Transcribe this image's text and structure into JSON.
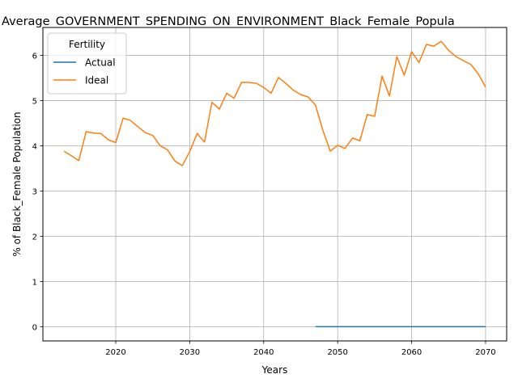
{
  "chart_data": {
    "type": "line",
    "title": "Average_GOVERNMENT_SPENDING_ON_ENVIRONMENT_Black_Female_Popula",
    "xlabel": "Years",
    "ylabel": "% of Black_Female Population",
    "xlim": [
      2010.15,
      2072.85
    ],
    "ylim": [
      -0.315,
      6.615
    ],
    "xticks": [
      2020,
      2030,
      2040,
      2050,
      2060,
      2070
    ],
    "yticks": [
      0,
      1,
      2,
      3,
      4,
      5,
      6
    ],
    "grid": true,
    "legend": {
      "title": "Fertility",
      "placement": "top-left"
    },
    "colors": {
      "Actual": "#1f77b4",
      "Ideal": "#ff7f0e"
    },
    "series": [
      {
        "name": "Actual",
        "x": [
          2047,
          2048,
          2049,
          2050,
          2051,
          2052,
          2053,
          2054,
          2055,
          2056,
          2057,
          2058,
          2059,
          2060,
          2061,
          2062,
          2063,
          2064,
          2065,
          2066,
          2067,
          2068,
          2069,
          2070
        ],
        "values": [
          0,
          0,
          0,
          0,
          0,
          0,
          0,
          0,
          0,
          0,
          0,
          0,
          0,
          0,
          0,
          0,
          0,
          0,
          0,
          0,
          0,
          0,
          0,
          0
        ]
      },
      {
        "name": "Ideal",
        "x": [
          2013,
          2014,
          2015,
          2016,
          2017,
          2018,
          2019,
          2020,
          2021,
          2022,
          2023,
          2024,
          2025,
          2026,
          2027,
          2028,
          2029,
          2030,
          2031,
          2032,
          2033,
          2034,
          2035,
          2036,
          2037,
          2038,
          2039,
          2040,
          2041,
          2042,
          2043,
          2044,
          2045,
          2046,
          2047,
          2048,
          2049,
          2050,
          2051,
          2052,
          2053,
          2054,
          2055,
          2056,
          2057,
          2058,
          2059,
          2060,
          2061,
          2062,
          2063,
          2064,
          2065,
          2066,
          2067,
          2068,
          2069,
          2070
        ],
        "values": [
          3.88,
          3.78,
          3.67,
          4.31,
          4.28,
          4.27,
          4.13,
          4.07,
          4.61,
          4.56,
          4.42,
          4.29,
          4.23,
          4.0,
          3.91,
          3.66,
          3.56,
          3.87,
          4.27,
          4.08,
          4.96,
          4.81,
          5.16,
          5.05,
          5.4,
          5.4,
          5.38,
          5.29,
          5.16,
          5.51,
          5.38,
          5.23,
          5.13,
          5.08,
          4.9,
          4.34,
          3.88,
          4.01,
          3.94,
          4.17,
          4.11,
          4.69,
          4.65,
          5.54,
          5.1,
          5.97,
          5.56,
          6.08,
          5.84,
          6.24,
          6.2,
          6.31,
          6.11,
          5.97,
          5.88,
          5.8,
          5.59,
          5.3
        ]
      }
    ]
  }
}
